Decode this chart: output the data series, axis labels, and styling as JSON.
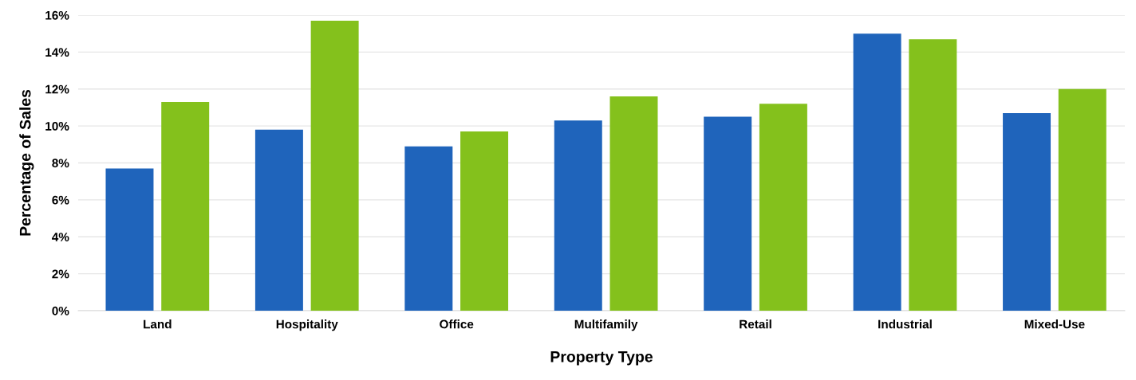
{
  "chart_data": {
    "type": "bar",
    "xlabel": "Property Type",
    "ylabel": "Percentage of Sales",
    "categories": [
      "Land",
      "Hospitality",
      "Office",
      "Multifamily",
      "Retail",
      "Industrial",
      "Mixed-Use"
    ],
    "series": [
      {
        "color": "#1f64bb",
        "values": [
          7.7,
          9.8,
          8.9,
          10.3,
          10.5,
          15.0,
          10.7
        ]
      },
      {
        "color": "#84c11c",
        "values": [
          11.3,
          15.7,
          9.7,
          11.6,
          11.2,
          14.7,
          12.0
        ]
      }
    ],
    "ylim": [
      0,
      16
    ],
    "yticks": [
      {
        "value": 0,
        "label": "0%"
      },
      {
        "value": 2,
        "label": "2%"
      },
      {
        "value": 4,
        "label": "4%"
      },
      {
        "value": 6,
        "label": "6%"
      },
      {
        "value": 8,
        "label": "8%"
      },
      {
        "value": 10,
        "label": "10%"
      },
      {
        "value": 12,
        "label": "12%"
      },
      {
        "value": 14,
        "label": "14%"
      },
      {
        "value": 16,
        "label": "16%"
      }
    ],
    "grid": "y",
    "legend": false
  }
}
